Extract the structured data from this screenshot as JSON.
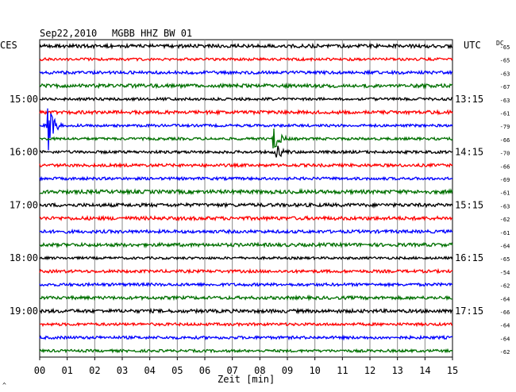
{
  "header": {
    "date": "Sep22,2010",
    "station": "MGBB HHZ BW 01",
    "left_tz": "CES",
    "right_tz": "UTC",
    "dc_label": "DC"
  },
  "footer": {
    "xlabel": "Zeit [min]",
    "corner_mark": "^"
  },
  "chart_data": {
    "type": "line",
    "title": "Sep22,2010  MGBB HHZ BW 01",
    "xlabel": "Zeit [min]",
    "x_range": [
      0,
      15
    ],
    "x_ticks": [
      "00",
      "01",
      "02",
      "03",
      "04",
      "05",
      "06",
      "07",
      "08",
      "09",
      "10",
      "11",
      "12",
      "13",
      "14",
      "15"
    ],
    "grid": true,
    "colors": [
      "#000000",
      "#ff0000",
      "#0000ff",
      "#007000"
    ],
    "left_labels": [
      {
        "row": 4,
        "text": "15:00"
      },
      {
        "row": 8,
        "text": "16:00"
      },
      {
        "row": 12,
        "text": "17:00"
      },
      {
        "row": 16,
        "text": "18:00"
      },
      {
        "row": 20,
        "text": "19:00"
      }
    ],
    "right_labels": [
      {
        "row": 4,
        "text": "13:15"
      },
      {
        "row": 8,
        "text": "14:15"
      },
      {
        "row": 12,
        "text": "15:15"
      },
      {
        "row": 16,
        "text": "16:15"
      },
      {
        "row": 20,
        "text": "17:15"
      }
    ],
    "dc_offsets": [
      "-65",
      "-65",
      "-63",
      "-67",
      "-63",
      "-61",
      "-79",
      "-66",
      "-70",
      "-66",
      "-69",
      "-61",
      "-63",
      "-62",
      "-61",
      "-64",
      "-65",
      "-54",
      "-62",
      "-64",
      "-66",
      "-64",
      "-64",
      "-62"
    ],
    "events": [
      {
        "row": 6,
        "minute": 0.3,
        "amplitude": 2.2
      },
      {
        "row": 7,
        "minute": 8.5,
        "amplitude": 1.1
      },
      {
        "row": 8,
        "minute": 8.6,
        "amplitude": 0.6
      }
    ]
  }
}
